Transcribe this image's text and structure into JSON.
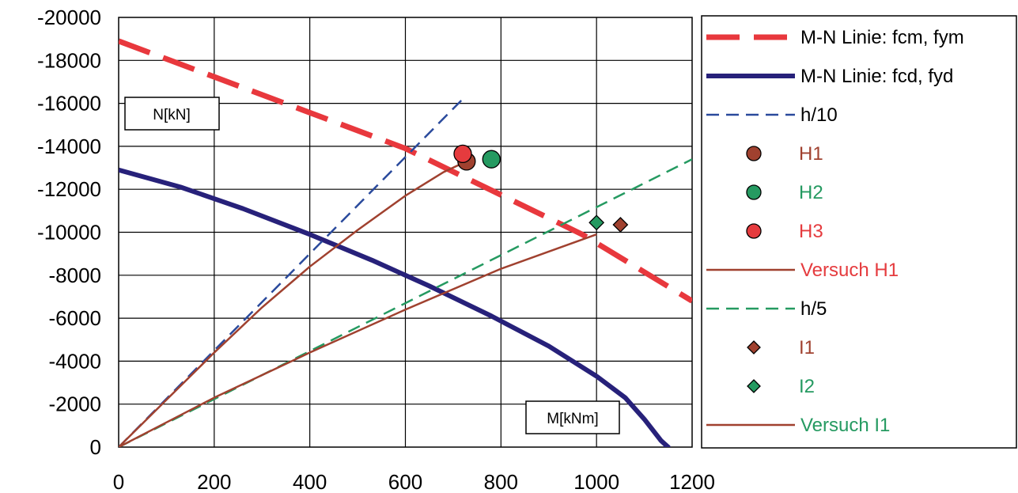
{
  "chart_data": {
    "type": "line",
    "xlim": [
      0,
      1200
    ],
    "ylim": [
      0,
      -20000
    ],
    "x_ticks": [
      "0",
      "200",
      "400",
      "600",
      "800",
      "1000",
      "1200"
    ],
    "y_ticks": [
      "-20000",
      "-18000",
      "-16000",
      "-14000",
      "-12000",
      "-10000",
      "-8000",
      "-6000",
      "-4000",
      "-2000",
      "0"
    ],
    "grid": true,
    "legend_position": "right",
    "annotations": {
      "y_axis_box": "N[kN]",
      "x_axis_box": "M[kNm]"
    },
    "series": [
      {
        "name": "M-N Linie: fcm, fym",
        "kind": "line",
        "style": "long-dash",
        "color": "#e8383d",
        "x": [
          0,
          600,
          970,
          1200
        ],
        "y": [
          -18900,
          -13900,
          -9900,
          -6800
        ]
      },
      {
        "name": "M-N Linie: fcd, fyd",
        "kind": "line",
        "style": "solid-thick",
        "color": "#27217a",
        "x": [
          0,
          130,
          260,
          400,
          530,
          650,
          780,
          900,
          1000,
          1060,
          1100,
          1135,
          1150,
          1140
        ],
        "y": [
          -12900,
          -12100,
          -11100,
          -9900,
          -8700,
          -7500,
          -6100,
          -4700,
          -3300,
          -2300,
          -1300,
          -300,
          0,
          0
        ]
      },
      {
        "name": "h/10",
        "kind": "line",
        "style": "dash",
        "color": "#2a4a9c",
        "x": [
          0,
          720
        ],
        "y": [
          0,
          -16200
        ]
      },
      {
        "name": "H1",
        "kind": "marker",
        "marker": "circle",
        "color": "#a0412f",
        "text_color": "#a0412f",
        "x": [
          728
        ],
        "y": [
          -13300
        ]
      },
      {
        "name": "H2",
        "kind": "marker",
        "marker": "circle",
        "color": "#259a61",
        "text_color": "#259a61",
        "x": [
          780
        ],
        "y": [
          -13400
        ]
      },
      {
        "name": "H3",
        "kind": "marker",
        "marker": "circle",
        "color": "#e53b3e",
        "text_color": "#e53b3e",
        "x": [
          720
        ],
        "y": [
          -13650
        ]
      },
      {
        "name": "Versuch H1",
        "kind": "line",
        "style": "solid",
        "color": "#a0412f",
        "text_color": "#e53b3e",
        "x": [
          0,
          100,
          200,
          300,
          400,
          500,
          600,
          680,
          728
        ],
        "y": [
          0,
          -2200,
          -4400,
          -6500,
          -8400,
          -10100,
          -11700,
          -12800,
          -13300
        ]
      },
      {
        "name": "h/5",
        "kind": "line",
        "style": "dash",
        "color": "#259a61",
        "x": [
          0,
          1200
        ],
        "y": [
          0,
          -13400
        ]
      },
      {
        "name": "I1",
        "kind": "marker",
        "marker": "diamond",
        "color": "#a0412f",
        "text_color": "#a0412f",
        "x": [
          1050
        ],
        "y": [
          -10350
        ]
      },
      {
        "name": "I2",
        "kind": "marker",
        "marker": "diamond",
        "color": "#259a61",
        "text_color": "#259a61",
        "x": [
          1000
        ],
        "y": [
          -10450
        ]
      },
      {
        "name": "Versuch I1",
        "kind": "line",
        "style": "solid",
        "color": "#a0412f",
        "text_color": "#259a61",
        "x": [
          0,
          200,
          400,
          600,
          800,
          1000
        ],
        "y": [
          0,
          -2300,
          -4400,
          -6400,
          -8300,
          -9900
        ]
      }
    ]
  }
}
